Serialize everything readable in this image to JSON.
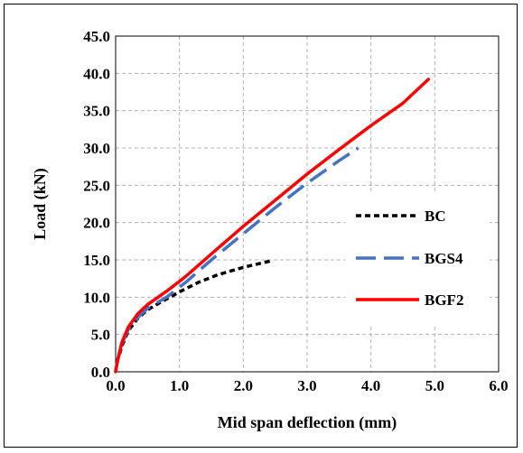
{
  "chart_data": {
    "type": "line",
    "xlabel": "Mid span deflection (mm)",
    "ylabel": "Load (kN)",
    "xlim": [
      0,
      6
    ],
    "ylim": [
      0,
      45
    ],
    "xticks": [
      "0.0",
      "1.0",
      "2.0",
      "3.0",
      "4.0",
      "5.0",
      "6.0"
    ],
    "yticks": [
      "0.0",
      "5.0",
      "10.0",
      "15.0",
      "20.0",
      "25.0",
      "30.0",
      "35.0",
      "40.0",
      "45.0"
    ],
    "grid": true,
    "legend_position": "right-center",
    "series": [
      {
        "name": "BC",
        "color": "#000000",
        "style": "dotted",
        "points": [
          [
            0,
            0
          ],
          [
            0.03,
            1.5
          ],
          [
            0.1,
            3.5
          ],
          [
            0.2,
            5.5
          ],
          [
            0.35,
            7.2
          ],
          [
            0.5,
            8.3
          ],
          [
            0.7,
            9.3
          ],
          [
            1.0,
            10.7
          ],
          [
            1.3,
            12.0
          ],
          [
            1.6,
            13.0
          ],
          [
            2.0,
            14.0
          ],
          [
            2.3,
            14.6
          ],
          [
            2.45,
            14.9
          ]
        ]
      },
      {
        "name": "BGS4",
        "color": "#4472C4",
        "style": "dashed",
        "points": [
          [
            0,
            0
          ],
          [
            0.03,
            1.5
          ],
          [
            0.1,
            3.8
          ],
          [
            0.2,
            5.7
          ],
          [
            0.35,
            7.3
          ],
          [
            0.5,
            8.5
          ],
          [
            0.8,
            10.0
          ],
          [
            1.1,
            12.0
          ],
          [
            1.5,
            15.0
          ],
          [
            2.0,
            18.5
          ],
          [
            2.5,
            22.0
          ],
          [
            3.0,
            25.3
          ],
          [
            3.5,
            28.3
          ],
          [
            3.8,
            30.0
          ]
        ]
      },
      {
        "name": "BGF2",
        "color": "#FF0000",
        "style": "solid",
        "points": [
          [
            0,
            0
          ],
          [
            0.03,
            1.5
          ],
          [
            0.1,
            4.0
          ],
          [
            0.2,
            6.0
          ],
          [
            0.35,
            7.8
          ],
          [
            0.5,
            9.0
          ],
          [
            0.8,
            10.8
          ],
          [
            1.1,
            12.8
          ],
          [
            1.5,
            15.8
          ],
          [
            2.0,
            19.5
          ],
          [
            2.5,
            23.0
          ],
          [
            3.0,
            26.5
          ],
          [
            3.5,
            29.8
          ],
          [
            4.0,
            33.0
          ],
          [
            4.5,
            36.0
          ],
          [
            4.9,
            39.2
          ]
        ]
      }
    ]
  }
}
